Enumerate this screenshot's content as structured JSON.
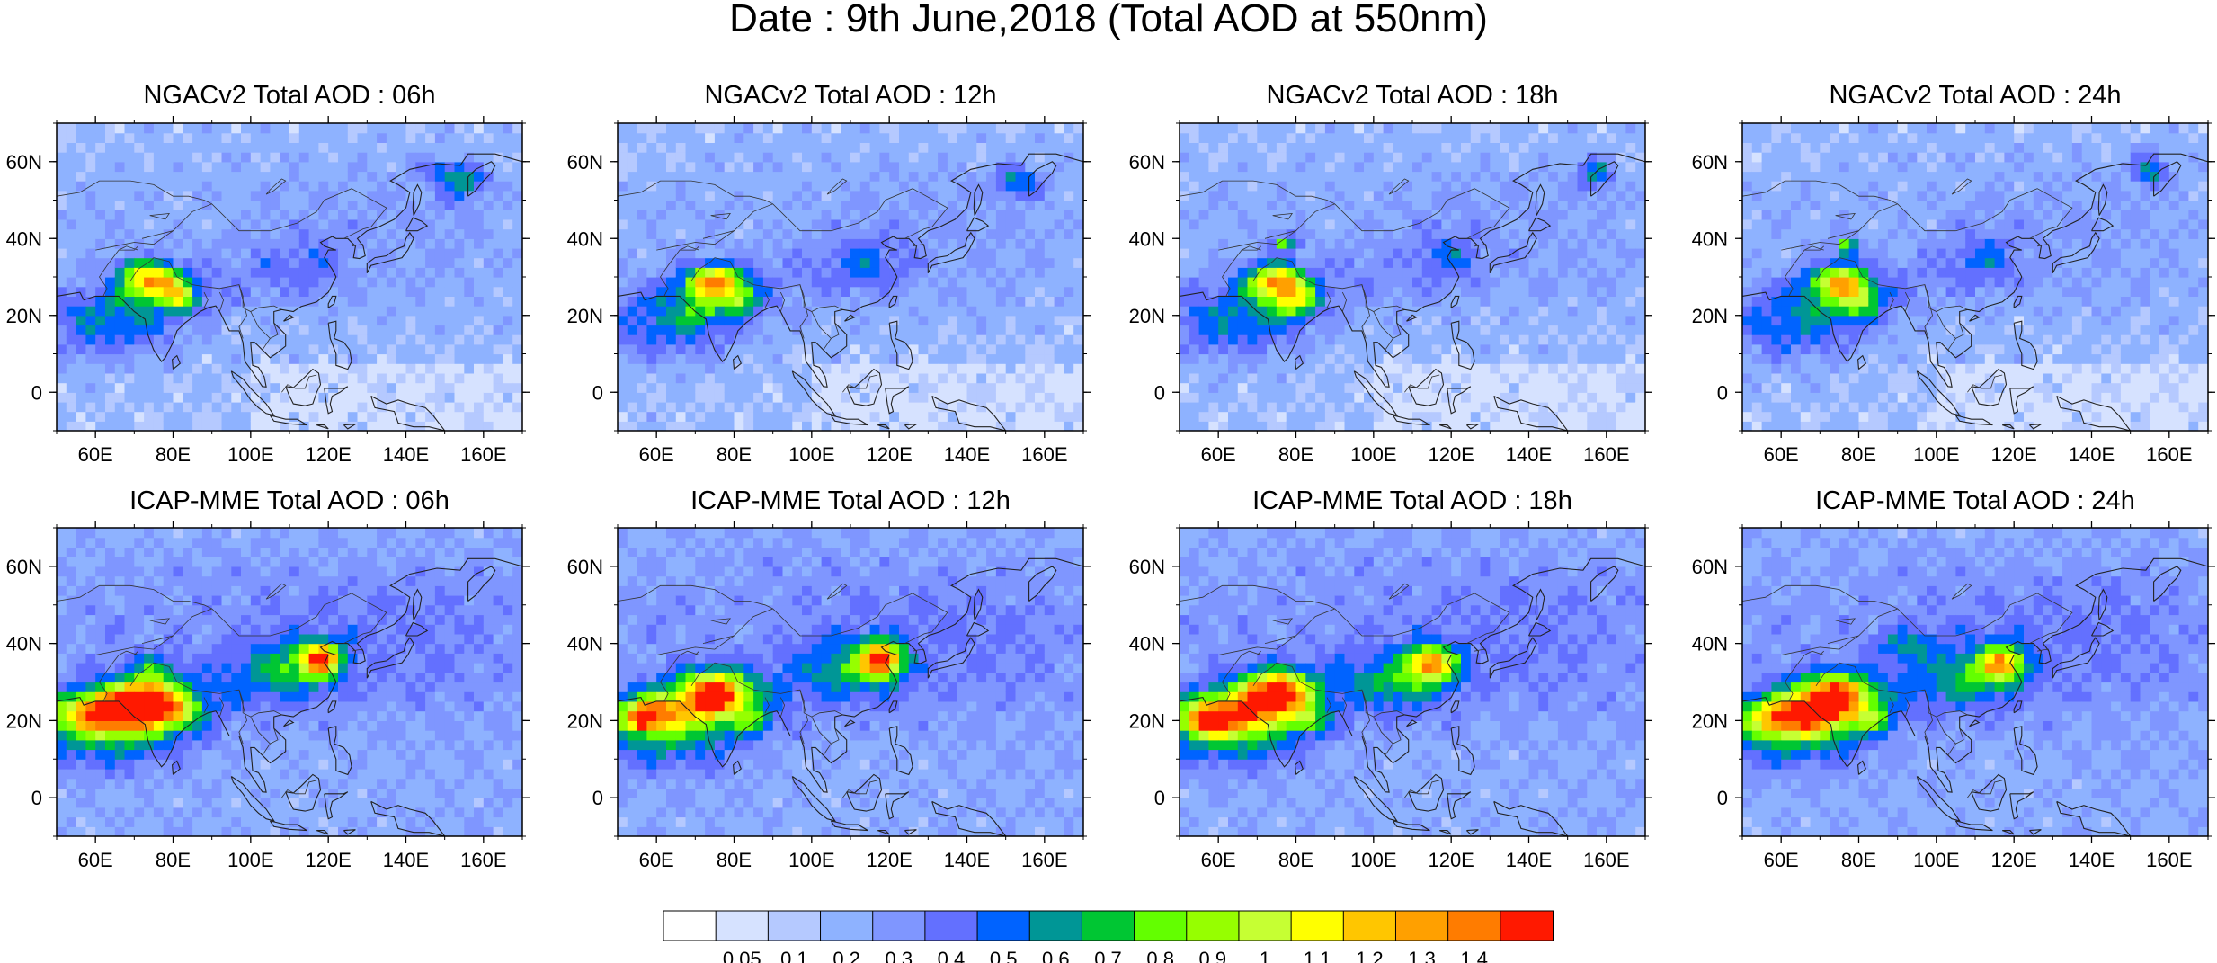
{
  "title": "Date : 9th June,2018 (Total AOD at 550nm)",
  "panels": [
    {
      "title": "NGACv2 Total AOD : 06h",
      "model": "ngac",
      "hour": 6
    },
    {
      "title": "NGACv2 Total AOD : 12h",
      "model": "ngac",
      "hour": 12
    },
    {
      "title": "NGACv2 Total AOD : 18h",
      "model": "ngac",
      "hour": 18
    },
    {
      "title": "NGACv2 Total AOD : 24h",
      "model": "ngac",
      "hour": 24
    },
    {
      "title": "ICAP-MME Total AOD : 06h",
      "model": "icap",
      "hour": 6
    },
    {
      "title": "ICAP-MME Total AOD : 12h",
      "model": "icap",
      "hour": 12
    },
    {
      "title": "ICAP-MME Total AOD : 18h",
      "model": "icap",
      "hour": 18
    },
    {
      "title": "ICAP-MME Total AOD : 24h",
      "model": "icap",
      "hour": 24
    }
  ],
  "map": {
    "lon_range": [
      50,
      170
    ],
    "lat_range": [
      -10,
      70
    ],
    "lon_ticks": [
      "60E",
      "80E",
      "100E",
      "120E",
      "140E",
      "160E"
    ],
    "lat_ticks": [
      "60N",
      "40N",
      "20N",
      "0"
    ]
  },
  "colorbar": {
    "colors": [
      "#ffffff",
      "#d6e2ff",
      "#b5c9ff",
      "#8eb2ff",
      "#7f96ff",
      "#6370ff",
      "#0063ff",
      "#009696",
      "#00c633",
      "#63ff00",
      "#96ff00",
      "#c6ff33",
      "#ffff00",
      "#ffc600",
      "#ffa000",
      "#ff7c00",
      "#ff1900"
    ],
    "labels": [
      "0.05",
      "0.1",
      "0.2",
      "0.3",
      "0.4",
      "0.5",
      "0.6",
      "0.7",
      "0.8",
      "0.9",
      "1",
      "1.1",
      "1.2",
      "1.3",
      "1.4"
    ]
  }
}
